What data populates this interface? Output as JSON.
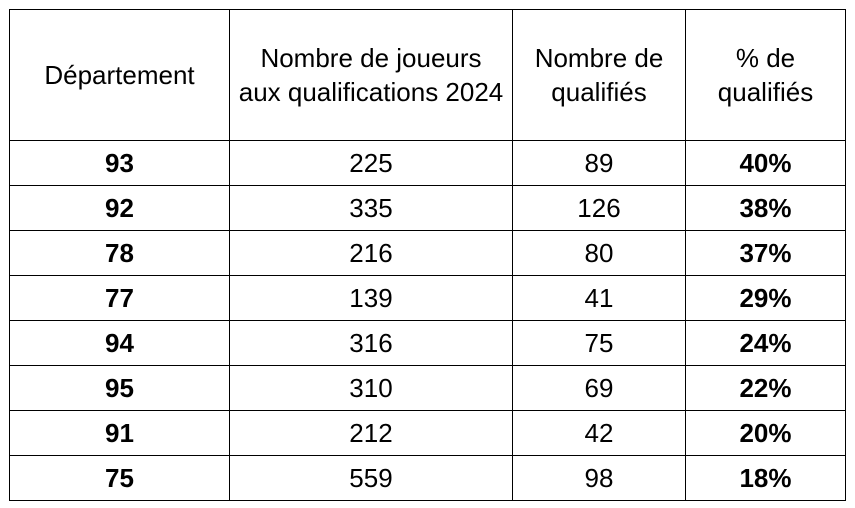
{
  "table": {
    "headers": [
      "Département",
      "Nombre de joueurs aux qualifications 2024",
      "Nombre de qualifiés",
      "% de qualifiés"
    ],
    "rows": [
      [
        "93",
        "225",
        "89",
        "40%"
      ],
      [
        "92",
        "335",
        "126",
        "38%"
      ],
      [
        "78",
        "216",
        "80",
        "37%"
      ],
      [
        "77",
        "139",
        "41",
        "29%"
      ],
      [
        "94",
        "316",
        "75",
        "24%"
      ],
      [
        "95",
        "310",
        "69",
        "22%"
      ],
      [
        "91",
        "212",
        "42",
        "20%"
      ],
      [
        "75",
        "559",
        "98",
        "18%"
      ]
    ]
  }
}
